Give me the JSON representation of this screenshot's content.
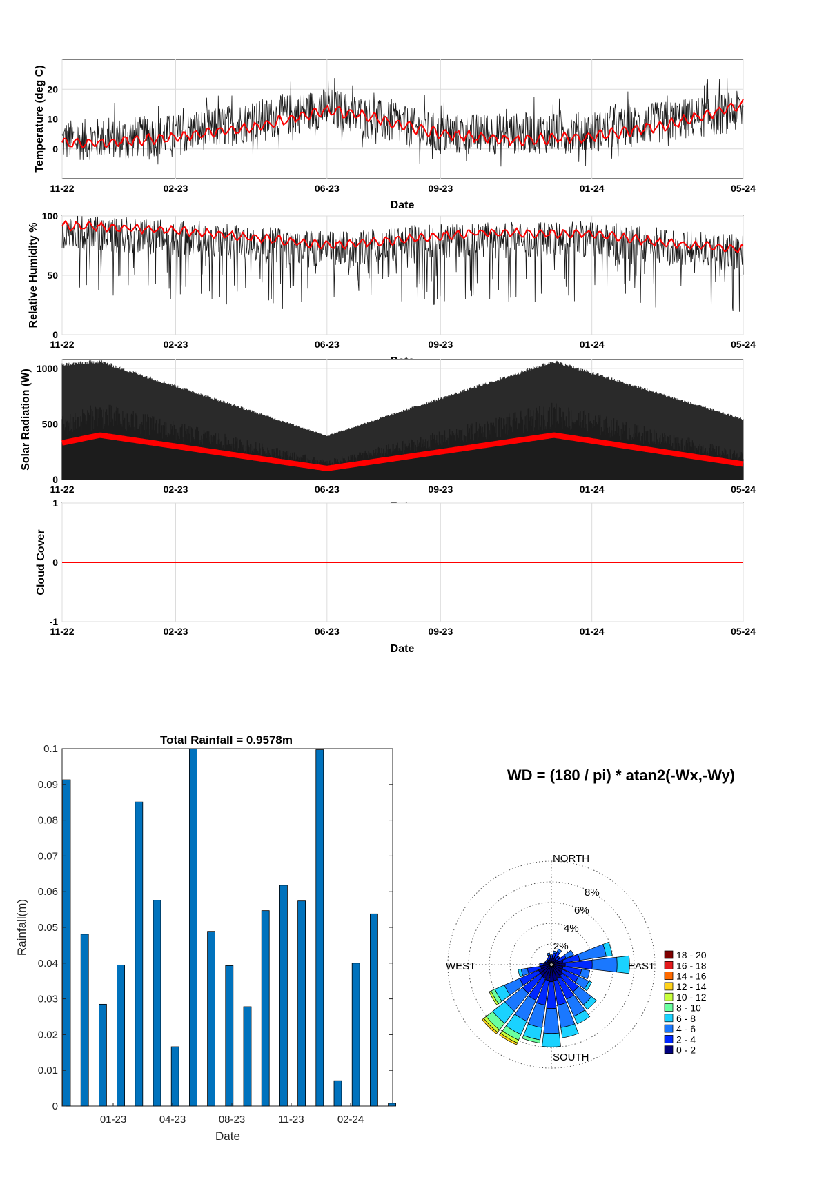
{
  "colors": {
    "series_raw": "#1a1a1a",
    "series_mean": "#ff0000",
    "bar_fill": "#0072bd",
    "grid": "#dcdcdc",
    "axis": "#000000"
  },
  "chart_data": [
    {
      "id": "temperature",
      "type": "line",
      "ylabel": "Temperature (deg C)",
      "xlabel": "Date",
      "x_ticks": [
        "11-22",
        "02-23",
        "06-23",
        "09-23",
        "01-24",
        "05-24"
      ],
      "ylim": [
        -10,
        30
      ],
      "y_ticks": [
        0,
        10,
        20
      ],
      "grid": true,
      "series": [
        {
          "style": "raw",
          "x": [
            "11-22",
            "02-23",
            "06-23",
            "09-23",
            "01-24",
            "05-24"
          ],
          "values": [
            2,
            4,
            13,
            4,
            5,
            12
          ],
          "range": [
            -7,
            28
          ]
        },
        {
          "style": "mean",
          "x": [
            "11-22",
            "12-22",
            "02-23",
            "04-23",
            "06-23",
            "07-23",
            "09-23",
            "11-23",
            "01-24",
            "03-24",
            "05-24"
          ],
          "values": [
            2,
            2,
            4,
            7,
            13,
            11,
            5,
            3,
            4,
            8,
            15
          ]
        }
      ]
    },
    {
      "id": "humidity",
      "type": "line",
      "ylabel": "Relative Humidity %",
      "xlabel": "Date",
      "x_ticks": [
        "11-22",
        "02-23",
        "06-23",
        "09-23",
        "01-24",
        "05-24"
      ],
      "ylim": [
        0,
        100
      ],
      "y_ticks": [
        0,
        50,
        100
      ],
      "grid": true,
      "series": [
        {
          "style": "raw",
          "x": [
            "11-22",
            "02-23",
            "06-23",
            "09-23",
            "01-24",
            "05-24"
          ],
          "values": [
            90,
            85,
            75,
            82,
            84,
            72
          ],
          "range": [
            15,
            100
          ]
        },
        {
          "style": "mean",
          "x": [
            "11-22",
            "02-23",
            "04-23",
            "06-23",
            "08-23",
            "10-23",
            "01-24",
            "03-24",
            "05-24"
          ],
          "values": [
            92,
            88,
            82,
            75,
            80,
            86,
            85,
            77,
            72
          ]
        }
      ]
    },
    {
      "id": "solar",
      "type": "area",
      "ylabel": "Solar Radiation (W)",
      "xlabel": "Date",
      "x_ticks": [
        "11-22",
        "02-23",
        "06-23",
        "09-23",
        "01-24",
        "05-24"
      ],
      "ylim": [
        0,
        1080
      ],
      "y_ticks": [
        0,
        500,
        1000
      ],
      "grid": true,
      "series": [
        {
          "style": "envelope",
          "x": [
            "11-22",
            "12-22",
            "06-23",
            "12-23",
            "05-24"
          ],
          "values": [
            1050,
            1080,
            400,
            1080,
            550
          ]
        },
        {
          "style": "mean",
          "x": [
            "11-22",
            "12-22",
            "06-23",
            "12-23",
            "05-24"
          ],
          "values": [
            330,
            400,
            100,
            400,
            140
          ]
        }
      ]
    },
    {
      "id": "cloud",
      "type": "line",
      "ylabel": "Cloud Cover",
      "xlabel": "Date",
      "x_ticks": [
        "11-22",
        "02-23",
        "06-23",
        "09-23",
        "01-24",
        "05-24"
      ],
      "ylim": [
        -1,
        1
      ],
      "y_ticks": [
        -1,
        0,
        1
      ],
      "grid": true,
      "series": [
        {
          "style": "mean",
          "x": [
            "11-22",
            "05-24"
          ],
          "values": [
            0,
            0
          ]
        }
      ]
    },
    {
      "id": "rainfall",
      "type": "bar",
      "title": "Total Rainfall = 0.9578m",
      "xlabel": "Date",
      "ylabel": "Rainfall(m)",
      "ylim": [
        0,
        0.1
      ],
      "y_ticks": [
        "0",
        "0.01",
        "0.02",
        "0.03",
        "0.04",
        "0.05",
        "0.06",
        "0.07",
        "0.08",
        "0.09",
        "0.1"
      ],
      "x_ticks": [
        "01-23",
        "04-23",
        "08-23",
        "11-23",
        "02-24"
      ],
      "values": [
        0.0913,
        0.0481,
        0.0285,
        0.0395,
        0.0851,
        0.0576,
        0.0166,
        0.1,
        0.0489,
        0.0393,
        0.0278,
        0.0547,
        0.0618,
        0.0574,
        0.0997,
        0.0071,
        0.04,
        0.0538,
        0.0008
      ],
      "grid": false
    },
    {
      "id": "windrose",
      "type": "rose",
      "title": "WD = (180 / pi) * atan2(-Wx,-Wy)",
      "directions": [
        "NORTH",
        "EAST",
        "SOUTH",
        "WEST"
      ],
      "radial_ticks": [
        "2%",
        "4%",
        "6%",
        "8%"
      ],
      "legend": [
        "18 - 20",
        "16 - 18",
        "14 - 16",
        "12 - 14",
        "10 - 12",
        "8 - 10",
        "6 - 8",
        "4 - 6",
        "2 - 4",
        "0 - 2"
      ],
      "legend_colors": [
        "#7f0000",
        "#e31a1c",
        "#ff6a00",
        "#ffd21a",
        "#c8ff3c",
        "#6affa0",
        "#1ad2ff",
        "#1a78ff",
        "#0028ff",
        "#00007f"
      ],
      "bins": [
        {
          "dir": 0,
          "segs": [
            0.4,
            0.3,
            0.1
          ]
        },
        {
          "dir": 15,
          "segs": [
            0.5,
            0.5,
            0.2
          ]
        },
        {
          "dir": 30,
          "segs": [
            0.6,
            0.6,
            0.3
          ]
        },
        {
          "dir": 45,
          "segs": [
            0.5,
            0.4
          ]
        },
        {
          "dir": 60,
          "segs": [
            0.6,
            0.8,
            0.8
          ]
        },
        {
          "dir": 75,
          "segs": [
            1.0,
            1.6,
            2.6,
            0.6
          ]
        },
        {
          "dir": 90,
          "segs": [
            1.2,
            2.6,
            2.4,
            1.2
          ]
        },
        {
          "dir": 105,
          "segs": [
            1.0,
            1.8,
            0.8
          ]
        },
        {
          "dir": 120,
          "segs": [
            1.0,
            1.7,
            1.1,
            0.3
          ]
        },
        {
          "dir": 135,
          "segs": [
            1.2,
            2.0,
            1.6,
            0.6
          ]
        },
        {
          "dir": 150,
          "segs": [
            1.3,
            2.2,
            1.8,
            0.8
          ]
        },
        {
          "dir": 165,
          "segs": [
            1.4,
            2.4,
            2.2,
            1.0
          ]
        },
        {
          "dir": 180,
          "segs": [
            1.5,
            2.6,
            2.4,
            1.3
          ]
        },
        {
          "dir": 195,
          "segs": [
            1.4,
            2.4,
            2.2,
            1.2,
            0.3
          ]
        },
        {
          "dir": 210,
          "segs": [
            1.3,
            2.3,
            2.2,
            1.4,
            0.6,
            0.3,
            0.2
          ]
        },
        {
          "dir": 225,
          "segs": [
            1.2,
            2.2,
            2.2,
            1.5,
            0.8,
            0.3,
            0.2
          ]
        },
        {
          "dir": 240,
          "segs": [
            1.2,
            2.0,
            1.6,
            1.0,
            0.4,
            0.2
          ]
        },
        {
          "dir": 255,
          "segs": [
            0.9,
            1.3,
            0.6,
            0.3
          ]
        },
        {
          "dir": 270,
          "segs": [
            0.6,
            0.4
          ]
        },
        {
          "dir": 285,
          "segs": [
            0.4,
            0.2
          ]
        },
        {
          "dir": 300,
          "segs": [
            0.3,
            0.2
          ]
        },
        {
          "dir": 315,
          "segs": [
            0.3,
            0.2
          ]
        },
        {
          "dir": 330,
          "segs": [
            0.4,
            0.2
          ]
        },
        {
          "dir": 345,
          "segs": [
            0.5,
            0.3,
            0.2
          ]
        }
      ]
    }
  ]
}
